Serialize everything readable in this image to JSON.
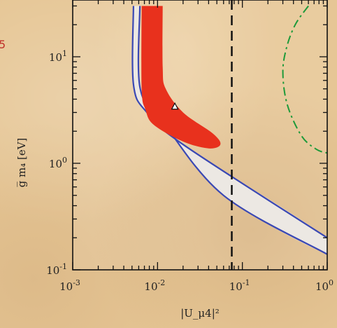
{
  "chart_data": {
    "type": "line",
    "xscale": "log",
    "yscale": "log",
    "xlim": [
      0.001,
      1
    ],
    "ylim": [
      0.1,
      30
    ],
    "xlabel": "|U_μ4|²",
    "ylabel": "g̅ m₄ [eV]",
    "x_ticks": [
      {
        "value": 0.001,
        "base": "10",
        "exp": "-3"
      },
      {
        "value": 0.01,
        "base": "10",
        "exp": "-2"
      },
      {
        "value": 0.1,
        "base": "10",
        "exp": "-1"
      },
      {
        "value": 1,
        "base": "10",
        "exp": "0"
      }
    ],
    "y_ticks": [
      {
        "value": 0.1,
        "base": "10",
        "exp": "-1"
      },
      {
        "value": 1,
        "base": "10",
        "exp": "0"
      },
      {
        "value": 10,
        "base": "10",
        "exp": "1"
      }
    ],
    "cropped_label": "5",
    "regions": {
      "outer": {
        "left_x": 0.0052,
        "right_x": 0.0062,
        "points": [
          [
            0.0052,
            30
          ],
          [
            0.0052,
            5.5
          ],
          [
            0.0075,
            3.0
          ],
          [
            0.02,
            1.5
          ],
          [
            1,
            0.2
          ],
          [
            1,
            0.14
          ],
          [
            0.06,
            0.5
          ],
          [
            0.011,
            2.6
          ],
          [
            0.0062,
            5.2
          ],
          [
            0.0062,
            30
          ]
        ]
      },
      "inner_red": {
        "points": [
          [
            0.0065,
            30
          ],
          [
            0.0065,
            5.0
          ],
          [
            0.0072,
            3.2
          ],
          [
            0.009,
            2.3
          ],
          [
            0.02,
            1.6
          ],
          [
            0.04,
            1.38
          ],
          [
            0.055,
            1.5
          ],
          [
            0.045,
            1.9
          ],
          [
            0.02,
            3.0
          ],
          [
            0.0125,
            5.0
          ],
          [
            0.0115,
            8.0
          ],
          [
            0.0115,
            30
          ]
        ]
      },
      "dashed_x": 0.075,
      "dashdot": {
        "points": [
          [
            0.6,
            30
          ],
          [
            0.42,
            20
          ],
          [
            0.33,
            12
          ],
          [
            0.3,
            7
          ],
          [
            0.34,
            3.5
          ],
          [
            0.5,
            1.8
          ],
          [
            0.75,
            1.35
          ],
          [
            1,
            1.25
          ]
        ]
      }
    },
    "best_fit": {
      "x": 0.016,
      "y": 3.4
    }
  }
}
